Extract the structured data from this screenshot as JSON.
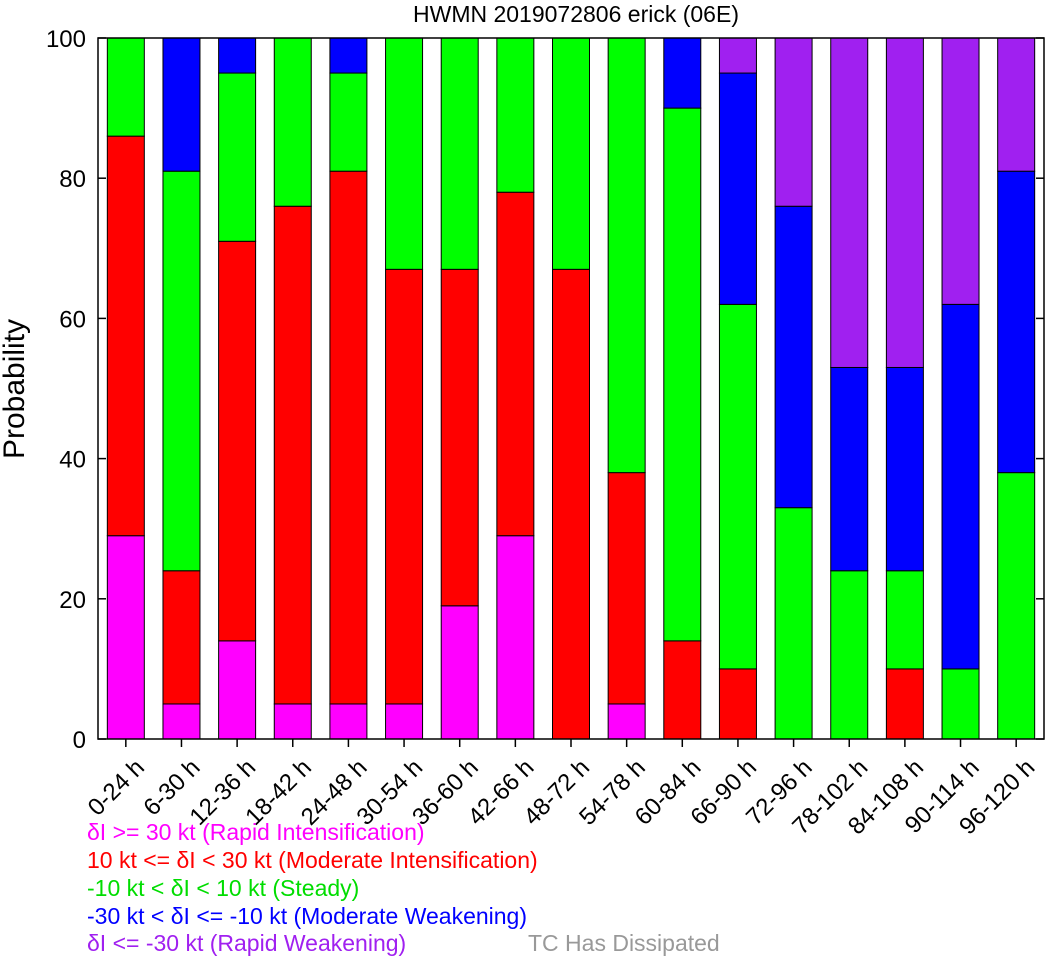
{
  "chart_data": {
    "type": "bar",
    "stacked": true,
    "title": "HWMN 2019072806 erick (06E)",
    "xlabel": "",
    "ylabel": "Probability",
    "ylim": [
      0,
      100
    ],
    "yticks": [
      0,
      20,
      40,
      60,
      80,
      100
    ],
    "categories": [
      "0-24 h",
      "6-30 h",
      "12-36 h",
      "18-42 h",
      "24-48 h",
      "30-54 h",
      "36-60 h",
      "42-66 h",
      "48-72 h",
      "54-78 h",
      "60-84 h",
      "66-90 h",
      "72-96 h",
      "78-102 h",
      "84-108 h",
      "90-114 h",
      "96-120 h"
    ],
    "series": [
      {
        "name": "δI >= 30 kt (Rapid Intensification)",
        "color": "#ff00ff",
        "values": [
          29,
          5,
          14,
          5,
          5,
          5,
          19,
          29,
          0,
          5,
          0,
          0,
          0,
          0,
          0,
          0,
          0
        ]
      },
      {
        "name": "10 kt <= δI < 30 kt (Moderate Intensification)",
        "color": "#ff0000",
        "values": [
          57,
          19,
          57,
          71,
          76,
          62,
          48,
          49,
          67,
          33,
          14,
          10,
          0,
          0,
          10,
          0,
          0
        ]
      },
      {
        "name": "-10 kt < δI < 10 kt (Steady)",
        "color": "#00ff00",
        "values": [
          14,
          57,
          24,
          24,
          14,
          33,
          33,
          22,
          33,
          62,
          76,
          52,
          33,
          24,
          14,
          10,
          38
        ]
      },
      {
        "name": "-30 kt < δI <= -10 kt (Moderate Weakening)",
        "color": "#0000ff",
        "values": [
          0,
          19,
          5,
          0,
          5,
          0,
          0,
          0,
          0,
          0,
          10,
          33,
          43,
          29,
          29,
          52,
          43
        ]
      },
      {
        "name": "δI <= -30 kt (Rapid Weakening)",
        "color": "#a020f0",
        "values": [
          0,
          0,
          0,
          0,
          0,
          0,
          0,
          0,
          0,
          0,
          0,
          5,
          24,
          47,
          47,
          38,
          19
        ]
      }
    ],
    "extra_legend": {
      "text": "TC Has Dissipated",
      "color": "#999999"
    },
    "grid": false,
    "legend_placement": "bottom-left"
  }
}
